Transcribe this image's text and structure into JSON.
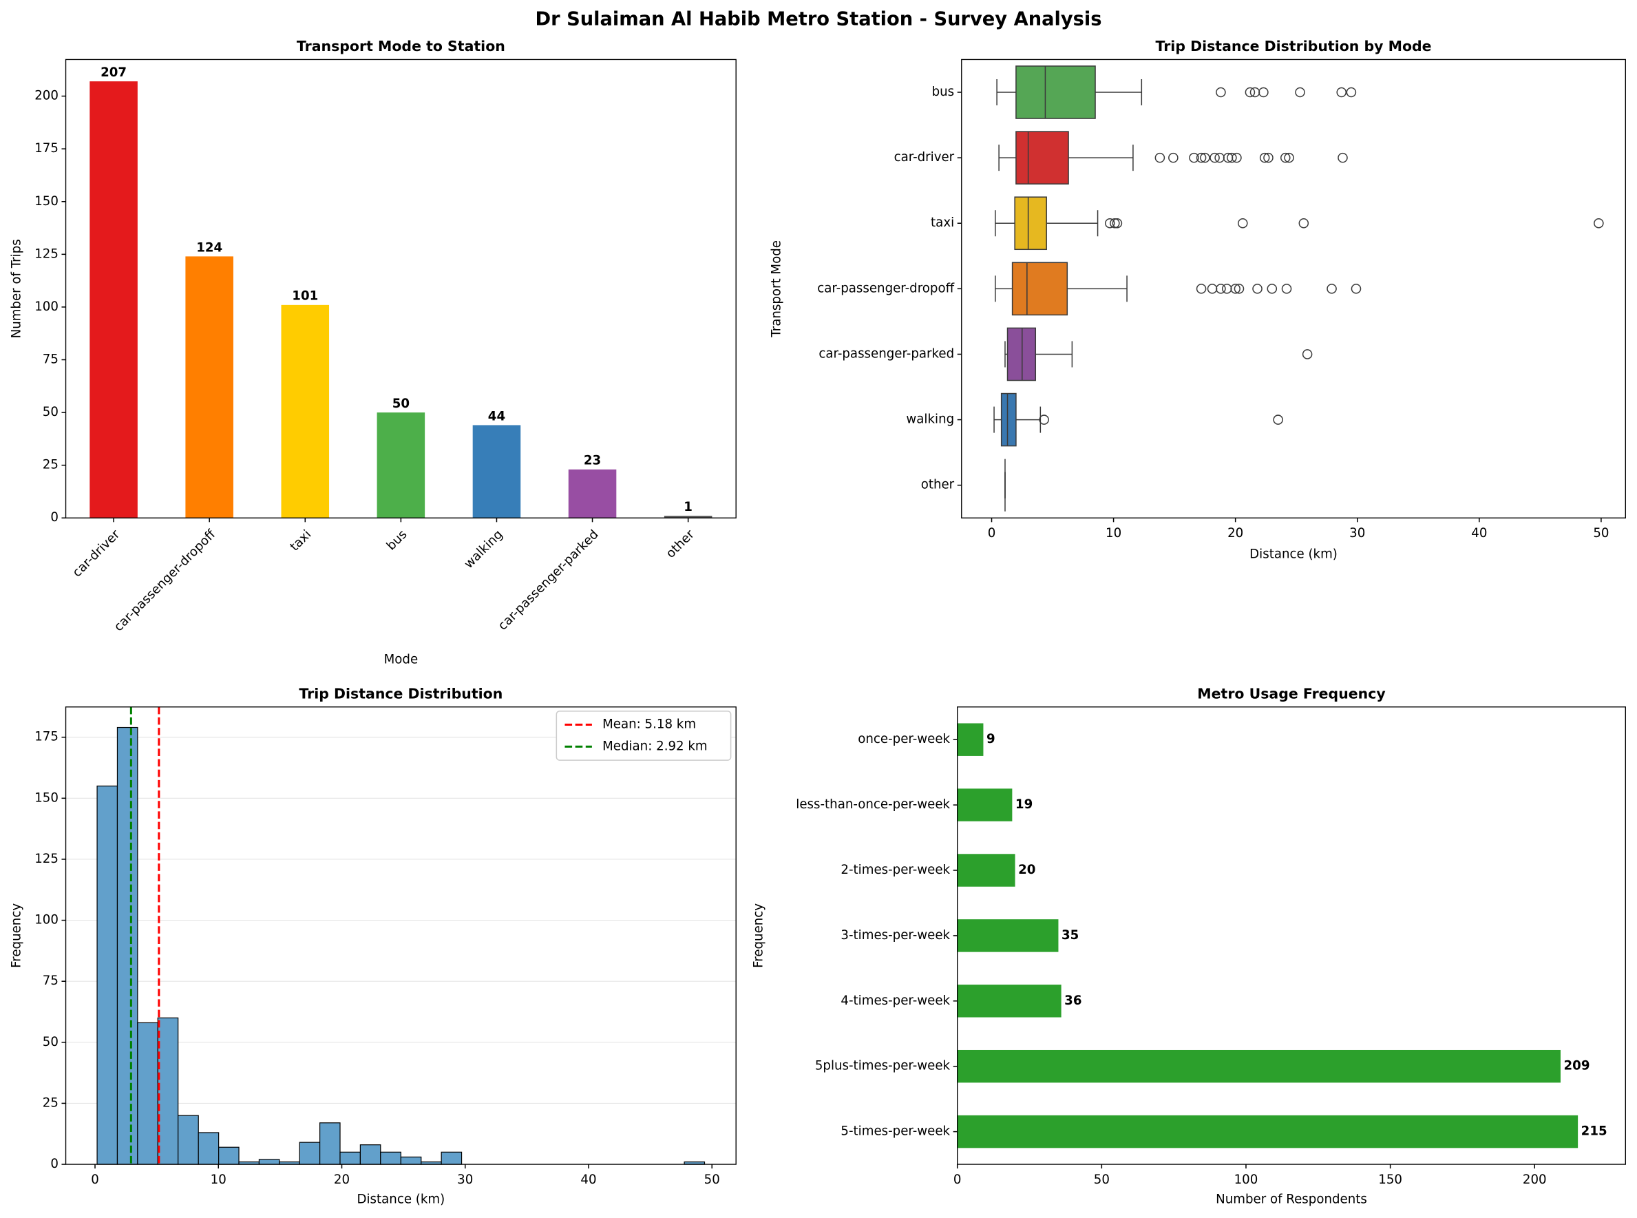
{
  "title": "Dr Sulaiman Al Habib Metro Station - Survey Analysis",
  "chart_data": [
    {
      "type": "bar",
      "title": "Transport Mode to Station",
      "xlabel": "Mode",
      "ylabel": "Number of Trips",
      "categories": [
        "car-driver",
        "car-passenger-dropoff",
        "taxi",
        "bus",
        "walking",
        "car-passenger-parked",
        "other"
      ],
      "values": [
        207,
        124,
        101,
        50,
        44,
        23,
        1
      ],
      "colors": [
        "#e41a1c",
        "#ff7f00",
        "#ffcc00",
        "#4daf4a",
        "#377eb8",
        "#984ea3",
        "#555555"
      ],
      "ylim": [
        0,
        217.35
      ],
      "yticks": [
        0,
        25,
        50,
        75,
        100,
        125,
        150,
        175,
        200
      ],
      "grid": false
    },
    {
      "type": "box",
      "title": "Trip Distance Distribution by Mode",
      "xlabel": "Distance (km)",
      "ylabel": "Transport Mode",
      "categories": [
        "bus",
        "car-driver",
        "taxi",
        "car-passenger-dropoff",
        "car-passenger-parked",
        "walking",
        "other"
      ],
      "colors": [
        "#55a655",
        "#d03030",
        "#e6b820",
        "#e07b20",
        "#8a4f9a",
        "#3a78b0",
        "#8c8c8c"
      ],
      "boxes": [
        {
          "whislo": 0.43,
          "q1": 2.0,
          "med": 4.4,
          "q3": 8.5,
          "whishi": 12.3,
          "fliers": [
            18.8,
            21.2,
            21.6,
            22.3,
            25.3,
            28.7,
            29.5
          ]
        },
        {
          "whislo": 0.6,
          "q1": 2.0,
          "med": 3.0,
          "q3": 6.3,
          "whishi": 11.6,
          "fliers": [
            13.8,
            14.9,
            16.6,
            17.2,
            17.5,
            18.3,
            18.7,
            19.4,
            19.7,
            20.1,
            22.4,
            22.7,
            24.1,
            24.4,
            28.8
          ]
        },
        {
          "whislo": 0.3,
          "q1": 1.9,
          "med": 3.0,
          "q3": 4.5,
          "whishi": 8.7,
          "fliers": [
            9.7,
            10.1,
            10.3,
            20.6,
            25.6,
            49.8
          ]
        },
        {
          "whislo": 0.3,
          "q1": 1.7,
          "med": 2.9,
          "q3": 6.2,
          "whishi": 11.1,
          "fliers": [
            17.2,
            18.1,
            18.8,
            19.3,
            20.0,
            20.3,
            21.8,
            23.0,
            24.2,
            27.9,
            29.9
          ]
        },
        {
          "whislo": 1.1,
          "q1": 1.3,
          "med": 2.5,
          "q3": 3.6,
          "whishi": 6.6,
          "fliers": [
            25.9
          ]
        },
        {
          "whislo": 0.2,
          "q1": 0.8,
          "med": 1.3,
          "q3": 2.0,
          "whishi": 4.0,
          "fliers": [
            4.3,
            23.5
          ]
        },
        {
          "whislo": 1.1,
          "q1": 1.1,
          "med": 1.1,
          "q3": 1.1,
          "whishi": 1.1,
          "fliers": []
        }
      ],
      "xlim": [
        -2.47,
        52.0
      ],
      "xticks": [
        0,
        10,
        20,
        30,
        40,
        50
      ]
    },
    {
      "type": "histogram",
      "title": "Trip Distance Distribution",
      "xlabel": "Distance (km)",
      "ylabel": "Frequency",
      "bins": [
        0.17,
        1.81,
        3.45,
        5.09,
        6.73,
        8.38,
        10.02,
        11.66,
        13.3,
        14.94,
        16.58,
        18.22,
        19.86,
        21.5,
        23.14,
        24.79,
        26.43,
        28.07,
        29.71,
        31.35,
        32.99,
        34.63,
        36.27,
        37.91,
        39.55,
        41.2,
        42.84,
        44.48,
        46.12,
        47.76,
        49.4
      ],
      "counts": [
        155,
        179,
        58,
        60,
        20,
        13,
        7,
        1,
        2,
        1,
        9,
        17,
        5,
        8,
        5,
        3,
        1,
        5,
        0,
        0,
        0,
        0,
        0,
        0,
        0,
        0,
        0,
        0,
        0,
        1
      ],
      "color": "#62a0cb",
      "edgecolor": "#000000",
      "lines": [
        {
          "name": "Mean: 5.18 km",
          "value": 5.18,
          "color": "#ff0000"
        },
        {
          "name": "Median: 2.92 km",
          "value": 2.92,
          "color": "#008000"
        }
      ],
      "legend": "upper right",
      "xlim": [
        -2.37,
        51.95
      ],
      "xticks": [
        0,
        10,
        20,
        30,
        40,
        50
      ],
      "ylim": [
        0,
        187.4
      ],
      "yticks": [
        0,
        25,
        50,
        75,
        100,
        125,
        150,
        175
      ],
      "grid": true
    },
    {
      "type": "barh",
      "title": "Metro Usage Frequency",
      "xlabel": "Number of Respondents",
      "ylabel": "Frequency",
      "categories": [
        "once-per-week",
        "less-than-once-per-week",
        "2-times-per-week",
        "3-times-per-week",
        "4-times-per-week",
        "5plus-times-per-week",
        "5-times-per-week"
      ],
      "values": [
        9,
        19,
        20,
        35,
        36,
        209,
        215
      ],
      "color": "#2ca02c",
      "xlim": [
        0,
        231.5
      ],
      "xticks": [
        0,
        50,
        100,
        150,
        200
      ]
    }
  ]
}
